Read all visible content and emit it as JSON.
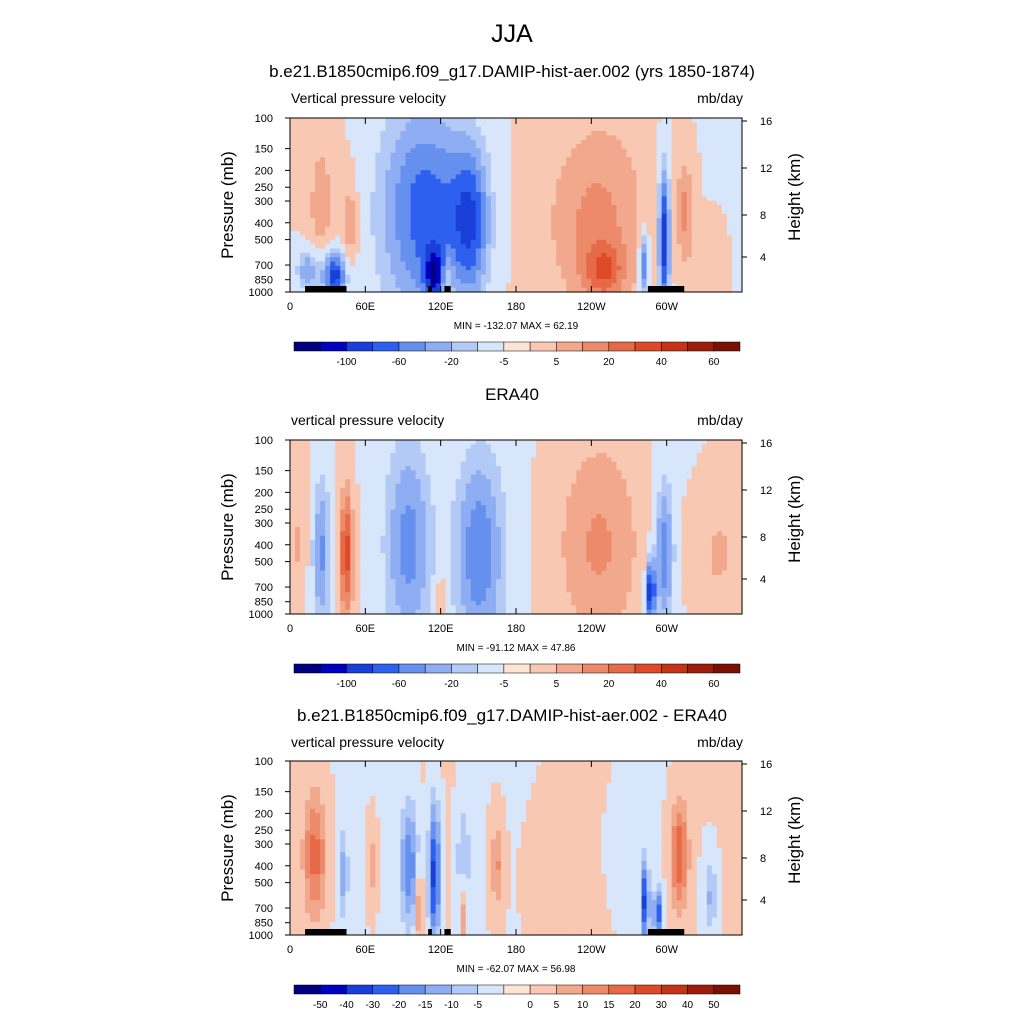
{
  "figure": {
    "title": "JJA"
  },
  "chart_data": [
    {
      "type": "heatmap",
      "title": "b.e21.B1850cmip6.f09_g17.DAMIP-hist-aer.002 (yrs 1850-1874)",
      "left_label": "Vertical pressure velocity",
      "right_label": "mb/day",
      "ylabel": "Pressure (mb)",
      "ylabel_right": "Height (km)",
      "x_tick_labels": [
        "0",
        "60E",
        "120E",
        "180",
        "120W",
        "60W"
      ],
      "x_ticks_deg": [
        0,
        60,
        120,
        180,
        240,
        300
      ],
      "xlim": [
        0,
        360
      ],
      "y_tick_labels": [
        "100",
        "150",
        "200",
        "250",
        "300",
        "400",
        "500",
        "700",
        "850",
        "1000"
      ],
      "y_ticks_mb": [
        100,
        150,
        200,
        250,
        300,
        400,
        500,
        700,
        850,
        1000
      ],
      "ylim": [
        1000,
        100
      ],
      "y_scale": "log",
      "right_tick_labels": [
        "16",
        "12",
        "8",
        "4"
      ],
      "min_max": "MIN = -132.07  MAX =  62.19",
      "colorbar_labels": [
        "-100",
        "-60",
        "-20",
        "-5",
        "5",
        "20",
        "40",
        "60"
      ],
      "colorbar_colors": [
        "#000080",
        "#0000c0",
        "#1a3fd9",
        "#2e60f0",
        "#6690ee",
        "#8eadf2",
        "#b4caf6",
        "#d8e6fb",
        "#fde4d4",
        "#f8c8b2",
        "#f2a88c",
        "#ec8a6a",
        "#e76a48",
        "#de4a28",
        "#c53418",
        "#9e1c0c",
        "#781004"
      ],
      "land_markers_deg": [
        [
          12,
          45
        ],
        [
          34,
          42
        ],
        [
          110,
          113
        ],
        [
          123,
          128
        ],
        [
          285,
          314
        ]
      ],
      "features": [
        {
          "lon": 25,
          "p": 350,
          "w": 12,
          "h": 1.0,
          "a": 18
        },
        {
          "lon": 48,
          "p": 400,
          "w": 6,
          "h": 0.5,
          "a": 25
        },
        {
          "lon": 15,
          "p": 750,
          "w": 10,
          "h": 0.3,
          "a": -35
        },
        {
          "lon": 35,
          "p": 800,
          "w": 10,
          "h": 0.3,
          "a": -60
        },
        {
          "lon": 110,
          "p": 350,
          "w": 40,
          "h": 1.3,
          "a": -45
        },
        {
          "lon": 145,
          "p": 400,
          "w": 15,
          "h": 0.9,
          "a": -35
        },
        {
          "lon": 115,
          "p": 800,
          "w": 8,
          "h": 0.3,
          "a": -40
        },
        {
          "lon": 125,
          "p": 850,
          "w": 5,
          "h": 0.3,
          "a": 20
        },
        {
          "lon": 240,
          "p": 400,
          "w": 45,
          "h": 1.3,
          "a": 25
        },
        {
          "lon": 250,
          "p": 750,
          "w": 15,
          "h": 0.3,
          "a": 25
        },
        {
          "lon": 298,
          "p": 500,
          "w": 5,
          "h": 0.9,
          "a": -60
        },
        {
          "lon": 282,
          "p": 700,
          "w": 4,
          "h": 0.4,
          "a": -50
        },
        {
          "lon": 315,
          "p": 350,
          "w": 8,
          "h": 0.7,
          "a": 25
        },
        {
          "lon": 335,
          "p": 700,
          "w": 10,
          "h": 0.5,
          "a": 15
        }
      ]
    },
    {
      "type": "heatmap",
      "title": "ERA40",
      "left_label": "vertical pressure velocity",
      "right_label": "mb/day",
      "ylabel": "Pressure (mb)",
      "ylabel_right": "Height (km)",
      "x_tick_labels": [
        "0",
        "60E",
        "120E",
        "180",
        "120W",
        "60W"
      ],
      "x_ticks_deg": [
        0,
        60,
        120,
        180,
        240,
        300
      ],
      "xlim": [
        0,
        360
      ],
      "y_tick_labels": [
        "100",
        "150",
        "200",
        "250",
        "300",
        "400",
        "500",
        "700",
        "850",
        "1000"
      ],
      "y_ticks_mb": [
        100,
        150,
        200,
        250,
        300,
        400,
        500,
        700,
        850,
        1000
      ],
      "ylim": [
        1000,
        100
      ],
      "y_scale": "log",
      "right_tick_labels": [
        "16",
        "12",
        "8",
        "4"
      ],
      "min_max": "MIN = -91.12  MAX =  47.86",
      "colorbar_labels": [
        "-100",
        "-60",
        "-20",
        "-5",
        "5",
        "20",
        "40",
        "60"
      ],
      "colorbar_colors": [
        "#000080",
        "#0000c0",
        "#1a3fd9",
        "#2e60f0",
        "#6690ee",
        "#8eadf2",
        "#b4caf6",
        "#d8e6fb",
        "#fde4d4",
        "#f8c8b2",
        "#f2a88c",
        "#ec8a6a",
        "#e76a48",
        "#de4a28",
        "#c53418",
        "#9e1c0c",
        "#781004"
      ],
      "land_markers_deg": [],
      "features": [
        {
          "lon": 8,
          "p": 400,
          "w": 5,
          "h": 0.6,
          "a": 12
        },
        {
          "lon": 25,
          "p": 450,
          "w": 8,
          "h": 1.0,
          "a": -35
        },
        {
          "lon": 45,
          "p": 450,
          "w": 6,
          "h": 0.8,
          "a": 45
        },
        {
          "lon": 95,
          "p": 400,
          "w": 20,
          "h": 1.3,
          "a": -35
        },
        {
          "lon": 150,
          "p": 450,
          "w": 22,
          "h": 1.3,
          "a": -40
        },
        {
          "lon": 120,
          "p": 800,
          "w": 4,
          "h": 0.3,
          "a": 20
        },
        {
          "lon": 245,
          "p": 400,
          "w": 40,
          "h": 1.3,
          "a": 22
        },
        {
          "lon": 287,
          "p": 750,
          "w": 4,
          "h": 0.4,
          "a": -60
        },
        {
          "lon": 298,
          "p": 450,
          "w": 8,
          "h": 0.9,
          "a": -40
        },
        {
          "lon": 340,
          "p": 450,
          "w": 20,
          "h": 0.8,
          "a": 15
        }
      ]
    },
    {
      "type": "heatmap",
      "title": "b.e21.B1850cmip6.f09_g17.DAMIP-hist-aer.002 - ERA40",
      "left_label": "vertical pressure velocity",
      "right_label": "mb/day",
      "ylabel": "Pressure (mb)",
      "ylabel_right": "Height (km)",
      "x_tick_labels": [
        "0",
        "60E",
        "120E",
        "180",
        "120W",
        "60W"
      ],
      "x_ticks_deg": [
        0,
        60,
        120,
        180,
        240,
        300
      ],
      "xlim": [
        0,
        360
      ],
      "y_tick_labels": [
        "100",
        "150",
        "200",
        "250",
        "300",
        "400",
        "500",
        "700",
        "850",
        "1000"
      ],
      "y_ticks_mb": [
        100,
        150,
        200,
        250,
        300,
        400,
        500,
        700,
        850,
        1000
      ],
      "ylim": [
        1000,
        100
      ],
      "y_scale": "log",
      "right_tick_labels": [
        "16",
        "12",
        "8",
        "4"
      ],
      "min_max": "MIN = -62.07  MAX =  56.98",
      "colorbar_labels": [
        "-50",
        "-40",
        "-30",
        "-20",
        "-15",
        "-10",
        "-5",
        "0",
        "5",
        "10",
        "15",
        "20",
        "30",
        "40",
        "50"
      ],
      "colorbar_colors": [
        "#000080",
        "#0000c0",
        "#1a3fd9",
        "#2e60f0",
        "#6690ee",
        "#8eadf2",
        "#b4caf6",
        "#d8e6fb",
        "#fde4d4",
        "#f8c8b2",
        "#f2a88c",
        "#ec8a6a",
        "#e76a48",
        "#de4a28",
        "#c53418",
        "#9e1c0c",
        "#781004"
      ],
      "land_markers_deg": [
        [
          12,
          45
        ],
        [
          34,
          42
        ],
        [
          110,
          113
        ],
        [
          123,
          128
        ],
        [
          285,
          314
        ]
      ],
      "features": [
        {
          "lon": 20,
          "p": 350,
          "w": 10,
          "h": 0.8,
          "a": 35
        },
        {
          "lon": 42,
          "p": 450,
          "w": 5,
          "h": 0.6,
          "a": -25
        },
        {
          "lon": 65,
          "p": 400,
          "w": 4,
          "h": 0.5,
          "a": 20
        },
        {
          "lon": 95,
          "p": 400,
          "w": 8,
          "h": 0.8,
          "a": -40
        },
        {
          "lon": 115,
          "p": 450,
          "w": 5,
          "h": 0.9,
          "a": -55
        },
        {
          "lon": 138,
          "p": 400,
          "w": 6,
          "h": 0.8,
          "a": -25
        },
        {
          "lon": 103,
          "p": 700,
          "w": 3,
          "h": 0.4,
          "a": 35
        },
        {
          "lon": 138,
          "p": 750,
          "w": 3,
          "h": 0.4,
          "a": 35
        },
        {
          "lon": 165,
          "p": 400,
          "w": 6,
          "h": 0.6,
          "a": 25
        },
        {
          "lon": 283,
          "p": 650,
          "w": 3,
          "h": 0.5,
          "a": -55
        },
        {
          "lon": 293,
          "p": 750,
          "w": 4,
          "h": 0.3,
          "a": -45
        },
        {
          "lon": 310,
          "p": 350,
          "w": 8,
          "h": 0.7,
          "a": 40
        },
        {
          "lon": 335,
          "p": 600,
          "w": 6,
          "h": 0.5,
          "a": -25
        },
        {
          "lon": 205,
          "p": 500,
          "w": 20,
          "h": 0.8,
          "a": 8
        },
        {
          "lon": 265,
          "p": 300,
          "w": 12,
          "h": 0.6,
          "a": -8
        }
      ]
    }
  ]
}
